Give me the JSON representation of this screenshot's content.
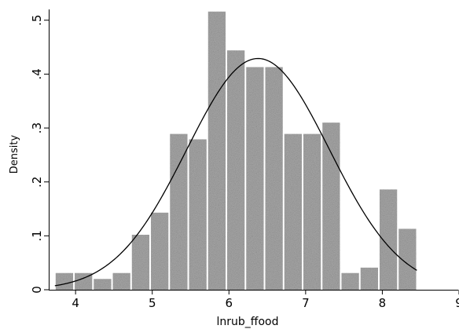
{
  "chart_data": {
    "type": "bar",
    "title": "",
    "xlabel": "lnrub_ffood",
    "ylabel": "Density",
    "xlim": [
      3.65,
      9.0
    ],
    "ylim": [
      0,
      0.52
    ],
    "x_ticks": [
      {
        "value": 4,
        "label": "4"
      },
      {
        "value": 5,
        "label": "5"
      },
      {
        "value": 6,
        "label": "6"
      },
      {
        "value": 7,
        "label": "7"
      },
      {
        "value": 8,
        "label": "8"
      },
      {
        "value": 9,
        "label": "9"
      }
    ],
    "y_ticks": [
      {
        "value": 0,
        "label": "0"
      },
      {
        "value": 0.1,
        "label": ".1"
      },
      {
        "value": 0.2,
        "label": ".2"
      },
      {
        "value": 0.3,
        "label": ".3"
      },
      {
        "value": 0.4,
        "label": ".4"
      },
      {
        "value": 0.5,
        "label": ".5"
      }
    ],
    "bin_start": 3.73,
    "bin_width": 0.2485,
    "values": [
      0.031,
      0.031,
      0.02,
      0.031,
      0.102,
      0.143,
      0.289,
      0.279,
      0.516,
      0.444,
      0.413,
      0.413,
      0.289,
      0.289,
      0.31,
      0.031,
      0.041,
      0.186,
      0.113
    ],
    "bar_color": "#a9a9a9",
    "normal_curve": {
      "mean": 6.38,
      "sd": 0.93,
      "x_range": [
        3.73,
        8.45
      ]
    },
    "grid": false
  }
}
